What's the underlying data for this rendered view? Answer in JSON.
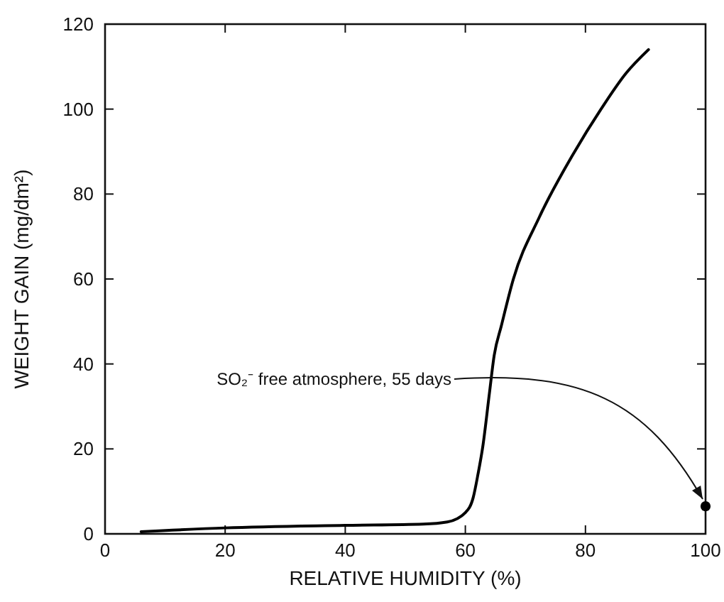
{
  "chart_data": {
    "type": "line",
    "xlabel": "RELATIVE HUMIDITY (%)",
    "ylabel": "WEIGHT GAIN (mg/dm²)",
    "xlim": [
      0,
      100
    ],
    "ylim": [
      0,
      120
    ],
    "xticks": [
      0,
      20,
      40,
      60,
      80,
      100
    ],
    "yticks": [
      0,
      20,
      40,
      60,
      80,
      100,
      120
    ],
    "grid": false,
    "series": [
      {
        "color": "#000000",
        "marker": "none",
        "line_style": "solid",
        "x": [
          6,
          20,
          40,
          53,
          57,
          60,
          61.3,
          62.1,
          62.9,
          64,
          64.8,
          66,
          68,
          72.3,
          78,
          82.6,
          86.8,
          90.5
        ],
        "values": [
          0.5,
          1.4,
          2,
          2.3,
          2.8,
          5,
          8.5,
          14,
          20.5,
          33,
          42,
          49,
          60,
          74.5,
          89.5,
          100,
          108.5,
          114
        ]
      },
      {
        "type": "scatter",
        "color": "#000000",
        "x": [
          100
        ],
        "values": [
          6.5
        ]
      }
    ],
    "annotations": [
      {
        "text": "SO₂⁻ free atmosphere, 55 days",
        "x": 100,
        "y": 6.5
      }
    ]
  }
}
